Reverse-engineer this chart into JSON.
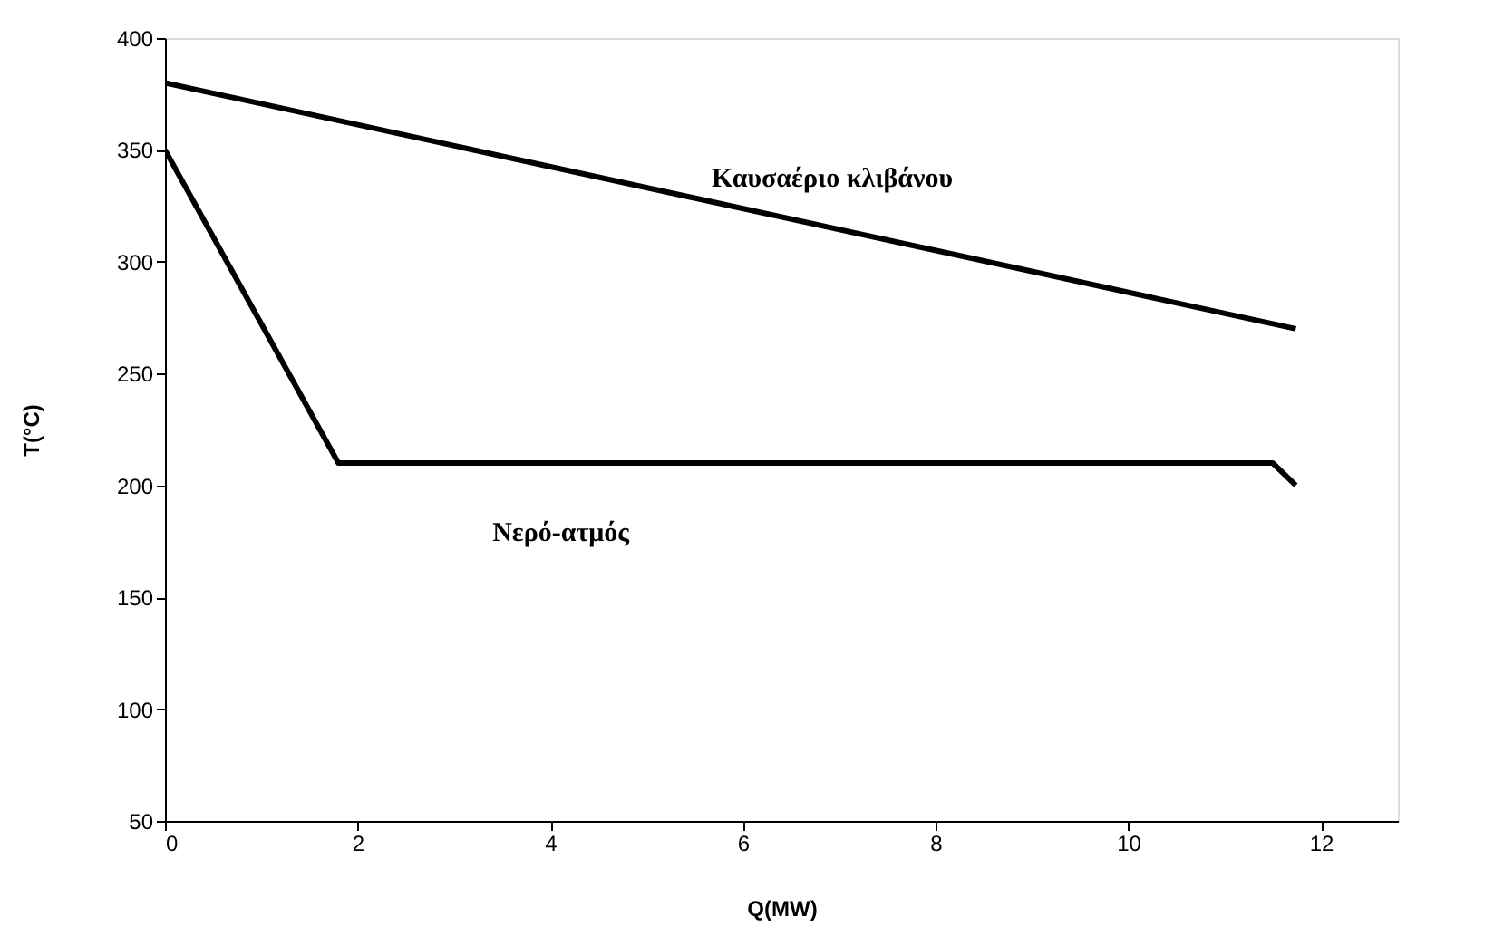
{
  "chart_data": {
    "type": "line",
    "xlabel": "Q(MW)",
    "ylabel": "T(°C)",
    "xlim": [
      0,
      12.8
    ],
    "xticks": [
      0,
      2,
      4,
      6,
      8,
      10,
      12
    ],
    "ylim": [
      50,
      400
    ],
    "yticks": [
      50,
      100,
      150,
      200,
      250,
      300,
      350,
      400
    ],
    "grid": false,
    "legend": false,
    "marker": "none",
    "line_style": "solid",
    "series": [
      {
        "name": "Καυσαέριο κλιβάνου",
        "x": [
          0,
          11.74
        ],
        "values": [
          380,
          270
        ],
        "color": "#000000"
      },
      {
        "name": "Νερό-ατμός",
        "x": [
          0,
          1.8,
          11.5,
          11.74
        ],
        "values": [
          350,
          210,
          210,
          200
        ],
        "color": "#000000"
      }
    ]
  }
}
